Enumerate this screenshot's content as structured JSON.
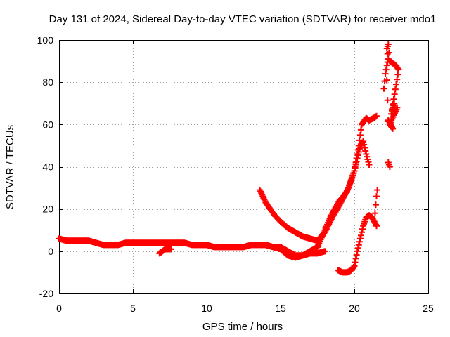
{
  "chart_data": {
    "type": "scatter",
    "title": "Day 131 of 2024, Sidereal Day-to-day VTEC variation (SDTVAR) for receiver mdo1",
    "xlabel": "GPS time / hours",
    "ylabel": "SDTVAR / TECUs",
    "xlim": [
      0,
      25
    ],
    "ylim": [
      -20,
      100
    ],
    "xticks": [
      "0",
      "5",
      "10",
      "15",
      "20",
      "25"
    ],
    "yticks": [
      "-20",
      "0",
      "20",
      "40",
      "60",
      "80",
      "100"
    ],
    "grid": true,
    "marker": "plus",
    "color": "#ff0000",
    "series": [
      {
        "name": "main_trace",
        "x": [
          0,
          0.5,
          1,
          1.5,
          2,
          2.5,
          3,
          3.5,
          4,
          4.5,
          5,
          5.5,
          6,
          6.5,
          7,
          7.5,
          8,
          8.5,
          9,
          9.5,
          10,
          10.5,
          11,
          11.5,
          12,
          12.5,
          13,
          13.5,
          14,
          14.5,
          15,
          15.5,
          16,
          16.5,
          17,
          17.5,
          18,
          18.5,
          19,
          19.5,
          20,
          20.3,
          20.5,
          20.8,
          21,
          21.3,
          21.5
        ],
        "y": [
          6,
          5,
          5,
          5,
          5,
          4,
          3,
          3,
          3,
          4,
          4,
          4,
          4,
          4,
          4,
          4,
          4,
          4,
          3,
          3,
          3,
          2,
          2,
          2,
          2,
          2,
          3,
          3,
          3,
          2,
          1,
          -2,
          -3,
          -2,
          0,
          2,
          10,
          18,
          24,
          28,
          38,
          50,
          60,
          63,
          62,
          63,
          64
        ]
      },
      {
        "name": "early_dip",
        "x": [
          6.8,
          7,
          7.2,
          7.4,
          7.6
        ],
        "y": [
          -1,
          0,
          1,
          1,
          1
        ]
      },
      {
        "name": "upper_branch",
        "x": [
          13.6,
          13.8,
          14,
          14.3,
          14.6,
          15,
          15.5,
          16,
          16.5,
          17,
          17.5,
          18,
          18.5,
          19,
          19.3,
          19.6,
          19.8,
          20,
          20.2,
          20.4,
          20.6,
          20.8,
          21
        ],
        "y": [
          29,
          26,
          23,
          20,
          17,
          14,
          11,
          9,
          7,
          6,
          5,
          9,
          16,
          22,
          26,
          30,
          34,
          38,
          44,
          50,
          52,
          46,
          41
        ]
      },
      {
        "name": "lower_arc",
        "x": [
          14,
          14.5,
          15,
          15.5,
          16,
          16.5,
          17,
          17.5,
          18
        ],
        "y": [
          3,
          2,
          2,
          0,
          -2,
          -2,
          -1,
          -1,
          0
        ]
      },
      {
        "name": "late_rise",
        "x": [
          18.9,
          19.2,
          19.5,
          19.8,
          20,
          20.2,
          20.4,
          20.6,
          20.8,
          21,
          21.2,
          21.5
        ],
        "y": [
          -9,
          -10,
          -10,
          -9,
          -7,
          0,
          6,
          12,
          16,
          17,
          16,
          12
        ]
      },
      {
        "name": "spike_21_4",
        "x": [
          21.4,
          21.45,
          21.5,
          21.55
        ],
        "y": [
          18,
          22,
          26,
          29
        ]
      },
      {
        "name": "upper_scatter",
        "x": [
          22,
          22.1,
          22.2,
          22.3,
          22.2,
          22.3,
          22.4,
          22.6,
          22.8,
          23,
          22.5,
          22.6,
          22.7,
          22.8,
          22.9,
          22.4,
          22.6,
          22.3,
          22.2,
          22.3,
          22.4
        ],
        "y": [
          77,
          84,
          88,
          91,
          96,
          98,
          90,
          89,
          88,
          86,
          65,
          68,
          70,
          66,
          68,
          60,
          58,
          62,
          81,
          42,
          40
        ]
      }
    ]
  }
}
